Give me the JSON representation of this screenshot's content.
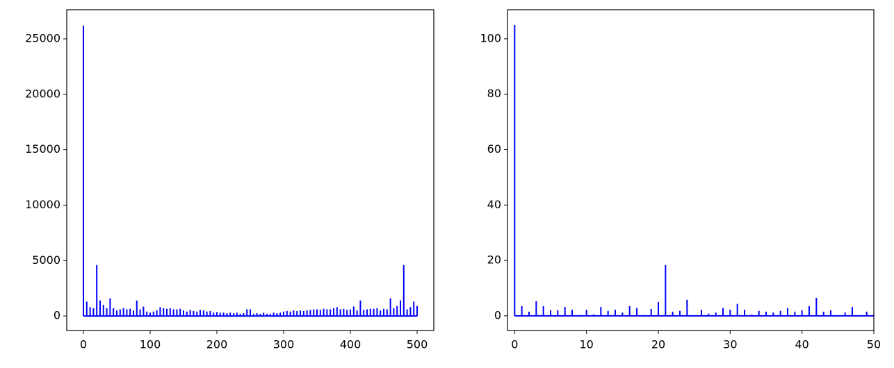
{
  "chart_data": [
    {
      "type": "stem",
      "color": "#0000ff",
      "x": [
        0,
        5,
        10,
        15,
        20,
        25,
        30,
        35,
        40,
        45,
        50,
        55,
        60,
        65,
        70,
        75,
        80,
        85,
        90,
        95,
        100,
        105,
        110,
        115,
        120,
        125,
        130,
        135,
        140,
        145,
        150,
        155,
        160,
        165,
        170,
        175,
        180,
        185,
        190,
        195,
        200,
        205,
        210,
        215,
        220,
        225,
        230,
        235,
        240,
        245,
        250,
        255,
        260,
        265,
        270,
        275,
        280,
        285,
        290,
        295,
        300,
        305,
        310,
        315,
        320,
        325,
        330,
        335,
        340,
        345,
        350,
        355,
        360,
        365,
        370,
        375,
        380,
        385,
        390,
        395,
        400,
        405,
        410,
        415,
        420,
        425,
        430,
        435,
        440,
        445,
        450,
        455,
        460,
        465,
        470,
        475,
        480,
        485,
        490,
        495,
        500
      ],
      "values": [
        26200,
        1300,
        800,
        700,
        4600,
        1400,
        1000,
        700,
        1600,
        700,
        500,
        600,
        700,
        600,
        650,
        500,
        1400,
        600,
        850,
        400,
        300,
        400,
        500,
        800,
        700,
        650,
        700,
        600,
        600,
        650,
        500,
        400,
        550,
        450,
        400,
        550,
        500,
        400,
        450,
        300,
        350,
        300,
        300,
        250,
        300,
        250,
        300,
        200,
        250,
        600,
        600,
        200,
        250,
        200,
        300,
        200,
        200,
        300,
        250,
        300,
        400,
        450,
        400,
        500,
        450,
        500,
        450,
        500,
        550,
        600,
        600,
        550,
        650,
        600,
        600,
        700,
        800,
        600,
        650,
        550,
        600,
        850,
        500,
        1400,
        550,
        600,
        650,
        650,
        700,
        500,
        650,
        600,
        1600,
        700,
        900,
        1400,
        4600,
        600,
        800,
        1300,
        900
      ],
      "xlim": [
        -25,
        525
      ],
      "ylim": [
        -1310,
        27630
      ],
      "xticks": [
        0,
        100,
        200,
        300,
        400,
        500
      ],
      "yticks": [
        0,
        5000,
        10000,
        15000,
        20000,
        25000
      ]
    },
    {
      "type": "stem",
      "color": "#0000ff",
      "x": [
        0,
        1,
        2,
        3,
        4,
        5,
        6,
        7,
        8,
        9,
        10,
        11,
        12,
        13,
        14,
        15,
        16,
        17,
        18,
        19,
        20,
        21,
        22,
        23,
        24,
        25,
        26,
        27,
        28,
        29,
        30,
        31,
        32,
        33,
        34,
        35,
        36,
        37,
        38,
        39,
        40,
        41,
        42,
        43,
        44,
        45,
        46,
        47,
        48,
        49,
        50
      ],
      "values": [
        105,
        3.5,
        1.5,
        5.3,
        3.5,
        2,
        2,
        3.2,
        2.2,
        0.3,
        2.2,
        0.5,
        3.2,
        1.8,
        2.2,
        1.2,
        3.5,
        2.8,
        0.3,
        2.5,
        5,
        18.3,
        1.5,
        1.8,
        5.8,
        0,
        2.2,
        0.8,
        1.2,
        2.8,
        2.2,
        4.3,
        2.2,
        0.4,
        1.8,
        1.5,
        1.2,
        1.8,
        2.8,
        1.5,
        2,
        3.5,
        6.5,
        1.5,
        2,
        0.2,
        1.2,
        3.2,
        0.2,
        1.5,
        0.3
      ],
      "xlim": [
        -1,
        50
      ],
      "ylim": [
        -5.3,
        110.5
      ],
      "xticks": [
        0,
        10,
        20,
        30,
        40,
        50
      ],
      "yticks": [
        0,
        20,
        40,
        60,
        80,
        100
      ]
    }
  ]
}
